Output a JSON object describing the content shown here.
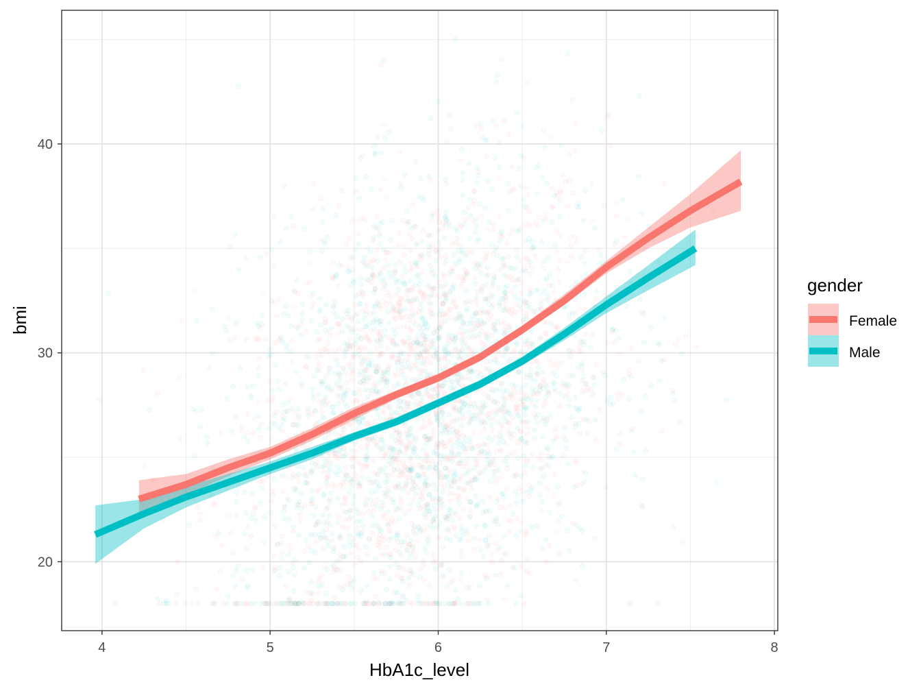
{
  "chart_data": {
    "type": "scatter",
    "xlabel": "HbA1c_level",
    "ylabel": "bmi",
    "xlim": [
      3.76,
      8.02
    ],
    "ylim": [
      16.7,
      46.4
    ],
    "x_ticks": [
      4,
      5,
      6,
      7,
      8
    ],
    "x_tick_labels": [
      "4",
      "5",
      "6",
      "7",
      "8"
    ],
    "y_ticks": [
      20,
      30,
      40
    ],
    "y_tick_labels": [
      "20",
      "30",
      "40"
    ],
    "grid": true,
    "legend": {
      "title": "gender",
      "position": "right",
      "entries": [
        "Female",
        "Male"
      ]
    },
    "scatter_summary": {
      "x_center": 5.9,
      "x_spread": 0.55,
      "y_center": 27.5,
      "y_spread": 5.2,
      "y_floor": 18.0,
      "y_cap": 45.0,
      "alpha": 0.05
    },
    "series": [
      {
        "name": "Female",
        "color": "#F8766D",
        "smooth": [
          [
            4.22,
            23.0
          ],
          [
            4.5,
            23.7
          ],
          [
            4.75,
            24.5
          ],
          [
            5.0,
            25.2
          ],
          [
            5.25,
            26.1
          ],
          [
            5.5,
            27.1
          ],
          [
            5.75,
            28.0
          ],
          [
            6.0,
            28.8
          ],
          [
            6.25,
            29.8
          ],
          [
            6.5,
            31.1
          ],
          [
            6.75,
            32.5
          ],
          [
            7.0,
            34.1
          ],
          [
            7.25,
            35.5
          ],
          [
            7.5,
            36.8
          ],
          [
            7.8,
            38.2
          ]
        ],
        "band": [
          [
            4.22,
            22.2,
            23.9
          ],
          [
            4.5,
            23.2,
            24.2
          ],
          [
            4.75,
            24.1,
            24.9
          ],
          [
            5.0,
            24.9,
            25.5
          ],
          [
            5.25,
            25.8,
            26.4
          ],
          [
            5.5,
            26.8,
            27.4
          ],
          [
            5.75,
            27.8,
            28.2
          ],
          [
            6.0,
            28.6,
            29.0
          ],
          [
            6.25,
            29.6,
            30.0
          ],
          [
            6.5,
            30.9,
            31.3
          ],
          [
            6.75,
            32.3,
            32.8
          ],
          [
            7.0,
            33.8,
            34.4
          ],
          [
            7.25,
            35.0,
            36.0
          ],
          [
            7.5,
            36.0,
            37.6
          ],
          [
            7.8,
            36.8,
            39.7
          ]
        ]
      },
      {
        "name": "Male",
        "color": "#00BFC4",
        "smooth": [
          [
            3.96,
            21.3
          ],
          [
            4.25,
            22.3
          ],
          [
            4.5,
            23.1
          ],
          [
            4.75,
            23.8
          ],
          [
            5.0,
            24.5
          ],
          [
            5.25,
            25.2
          ],
          [
            5.5,
            26.0
          ],
          [
            5.75,
            26.7
          ],
          [
            6.0,
            27.6
          ],
          [
            6.25,
            28.5
          ],
          [
            6.5,
            29.6
          ],
          [
            6.75,
            30.9
          ],
          [
            7.0,
            32.3
          ],
          [
            7.25,
            33.6
          ],
          [
            7.53,
            35.0
          ]
        ],
        "band": [
          [
            3.96,
            19.9,
            22.7
          ],
          [
            4.25,
            21.6,
            23.0
          ],
          [
            4.5,
            22.6,
            23.6
          ],
          [
            4.75,
            23.4,
            24.2
          ],
          [
            5.0,
            24.2,
            24.8
          ],
          [
            5.25,
            24.9,
            25.5
          ],
          [
            5.5,
            25.8,
            26.2
          ],
          [
            5.75,
            26.5,
            26.9
          ],
          [
            6.0,
            27.4,
            27.8
          ],
          [
            6.25,
            28.3,
            28.7
          ],
          [
            6.5,
            29.4,
            29.8
          ],
          [
            6.75,
            30.6,
            31.2
          ],
          [
            7.0,
            31.9,
            32.7
          ],
          [
            7.25,
            33.0,
            34.2
          ],
          [
            7.53,
            34.2,
            35.9
          ]
        ]
      }
    ]
  }
}
